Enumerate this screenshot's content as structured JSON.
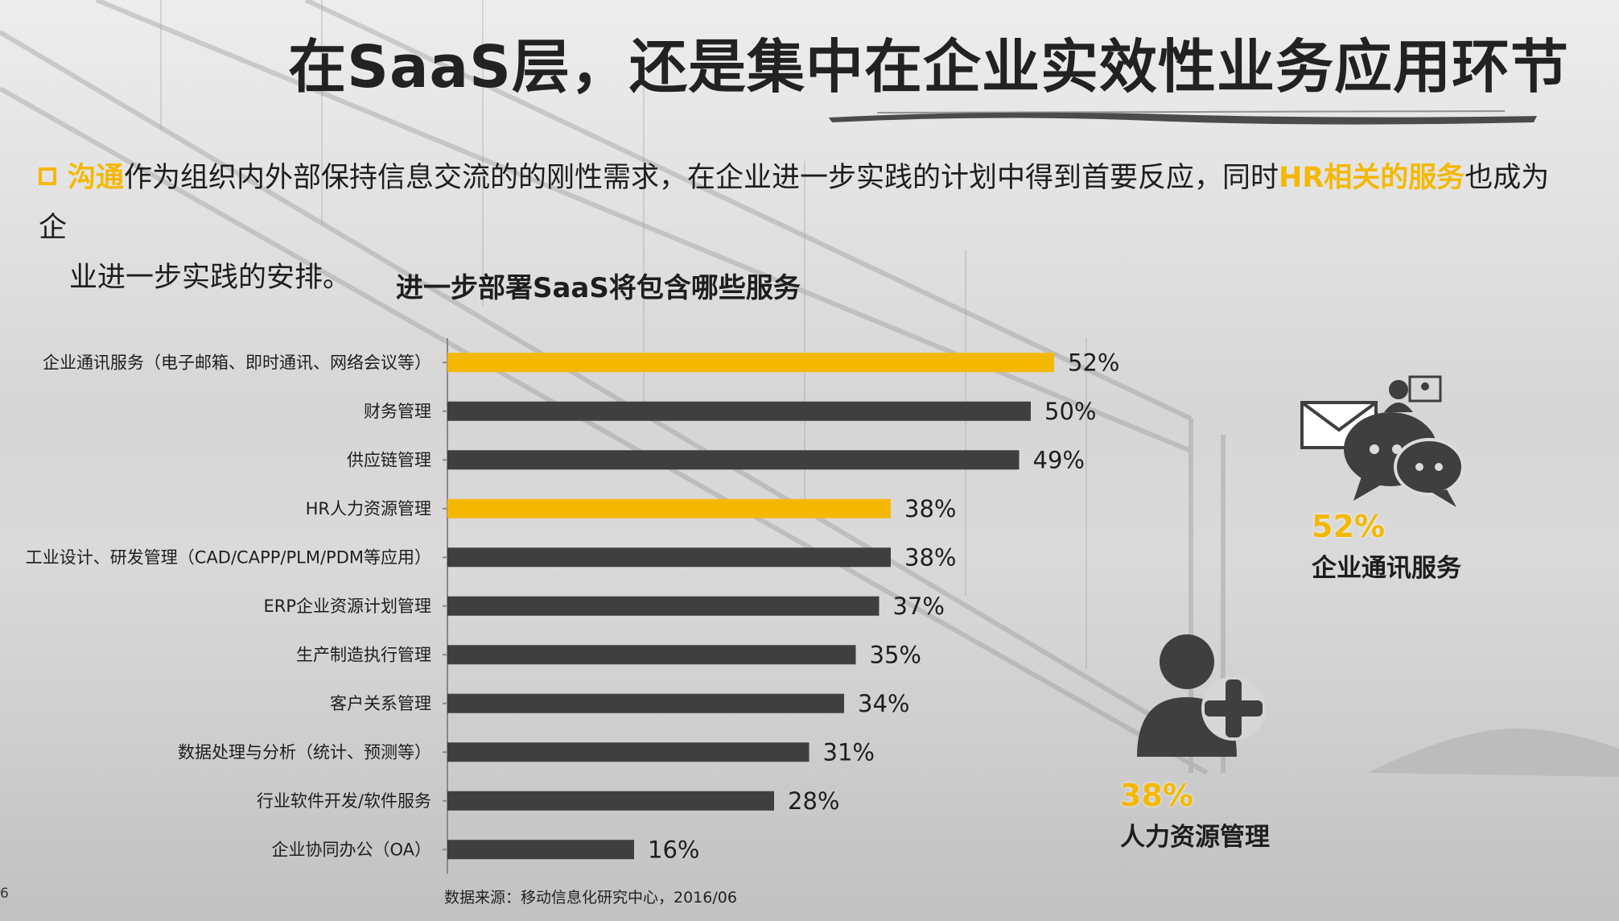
{
  "slide": {
    "title": "在SaaS层，还是集中在企业实效性业务应用环节",
    "intro": {
      "hl1": "沟通",
      "text1": "作为组织内外部保持信息交流的的刚性需求，在企业进一步实践的计划中得到首要反应，同时",
      "hl2": "HR相关的服务",
      "text2": "也成为企",
      "text3": "业进一步实践的安排。"
    },
    "source": "数据来源：移动信息化研究中心，2016/06",
    "page_number": "6"
  },
  "highlights": [
    {
      "pct": "52%",
      "name": "企业通讯服务",
      "icon": "chat-mail-icon"
    },
    {
      "pct": "38%",
      "name": "人力资源管理",
      "icon": "user-add-icon"
    }
  ],
  "colors": {
    "accent": "#f5b800",
    "bar": "#3f3f3f",
    "text": "#1e1e1e"
  },
  "chart_data": {
    "type": "bar",
    "orientation": "horizontal",
    "title": "进一步部署SaaS将包含哪些服务",
    "categories": [
      "企业通讯服务（电子邮箱、即时通讯、网络会议等）",
      "财务管理",
      "供应链管理",
      "HR人力资源管理",
      "工业设计、研发管理（CAD/CAPP/PLM/PDM等应用）",
      "ERP企业资源计划管理",
      "生产制造执行管理",
      "客户关系管理",
      "数据处理与分析（统计、预测等）",
      "行业软件开发/软件服务",
      "企业协同办公（OA）"
    ],
    "values": [
      52,
      50,
      49,
      38,
      38,
      37,
      35,
      34,
      31,
      28,
      16
    ],
    "value_labels": [
      "52%",
      "50%",
      "49%",
      "38%",
      "38%",
      "37%",
      "35%",
      "34%",
      "31%",
      "28%",
      "16%"
    ],
    "highlighted": [
      true,
      false,
      false,
      true,
      false,
      false,
      false,
      false,
      false,
      false,
      false
    ],
    "xlabel": "",
    "ylabel": "",
    "grid": false
  }
}
